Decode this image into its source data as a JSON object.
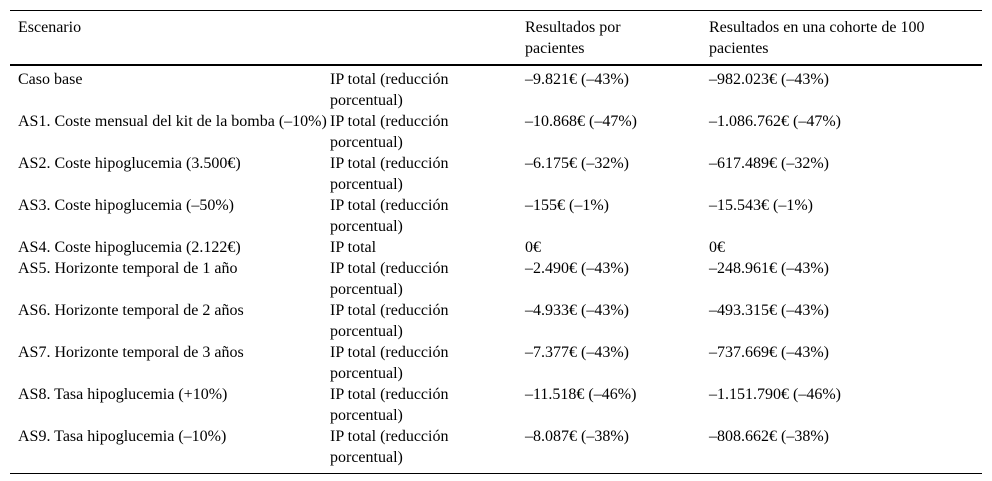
{
  "colors": {
    "background": "#ffffff",
    "text": "#000000",
    "rule": "#000000"
  },
  "table": {
    "columns": [
      {
        "label": "Escenario"
      },
      {
        "label": ""
      },
      {
        "label": "Resultados por pacientes"
      },
      {
        "label": "Resultados en una cohorte de 100 pacientes"
      }
    ],
    "rows": [
      {
        "scenario": "Caso base",
        "measure": "IP total (reducción porcentual)",
        "per_patient": "–9.821€ (–43%)",
        "cohort_100": "–982.023€ (–43%)"
      },
      {
        "scenario": "AS1. Coste mensual del kit de la bomba (–10%)",
        "measure": "IP total (reducción porcentual)",
        "per_patient": "–10.868€ (–47%)",
        "cohort_100": "–1.086.762€ (–47%)"
      },
      {
        "scenario": "AS2. Coste hipoglucemia (3.500€)",
        "measure": "IP total (reducción porcentual)",
        "per_patient": "–6.175€ (–32%)",
        "cohort_100": "–617.489€ (–32%)"
      },
      {
        "scenario": "AS3. Coste hipoglucemia (–50%)",
        "measure": "IP total (reducción porcentual)",
        "per_patient": "–155€ (–1%)",
        "cohort_100": "–15.543€ (–1%)"
      },
      {
        "scenario": "AS4. Coste hipoglucemia (2.122€)",
        "measure": "IP total",
        "per_patient": "0€",
        "cohort_100": "0€"
      },
      {
        "scenario": "AS5. Horizonte temporal de 1 año",
        "measure": "IP total (reducción porcentual)",
        "per_patient": "–2.490€ (–43%)",
        "cohort_100": "–248.961€ (–43%)"
      },
      {
        "scenario": "AS6. Horizonte temporal de 2 años",
        "measure": "IP total (reducción porcentual)",
        "per_patient": "–4.933€ (–43%)",
        "cohort_100": "–493.315€ (–43%)"
      },
      {
        "scenario": "AS7. Horizonte temporal de 3 años",
        "measure": "IP total (reducción porcentual)",
        "per_patient": "–7.377€ (–43%)",
        "cohort_100": "–737.669€ (–43%)"
      },
      {
        "scenario": "AS8. Tasa hipoglucemia (+10%)",
        "measure": "IP total (reducción porcentual)",
        "per_patient": "–11.518€ (–46%)",
        "cohort_100": "–1.151.790€ (–46%)"
      },
      {
        "scenario": "AS9. Tasa hipoglucemia (–10%)",
        "measure": "IP total (reducción porcentual)",
        "per_patient": "–8.087€ (–38%)",
        "cohort_100": "–808.662€ (–38%)"
      }
    ]
  }
}
